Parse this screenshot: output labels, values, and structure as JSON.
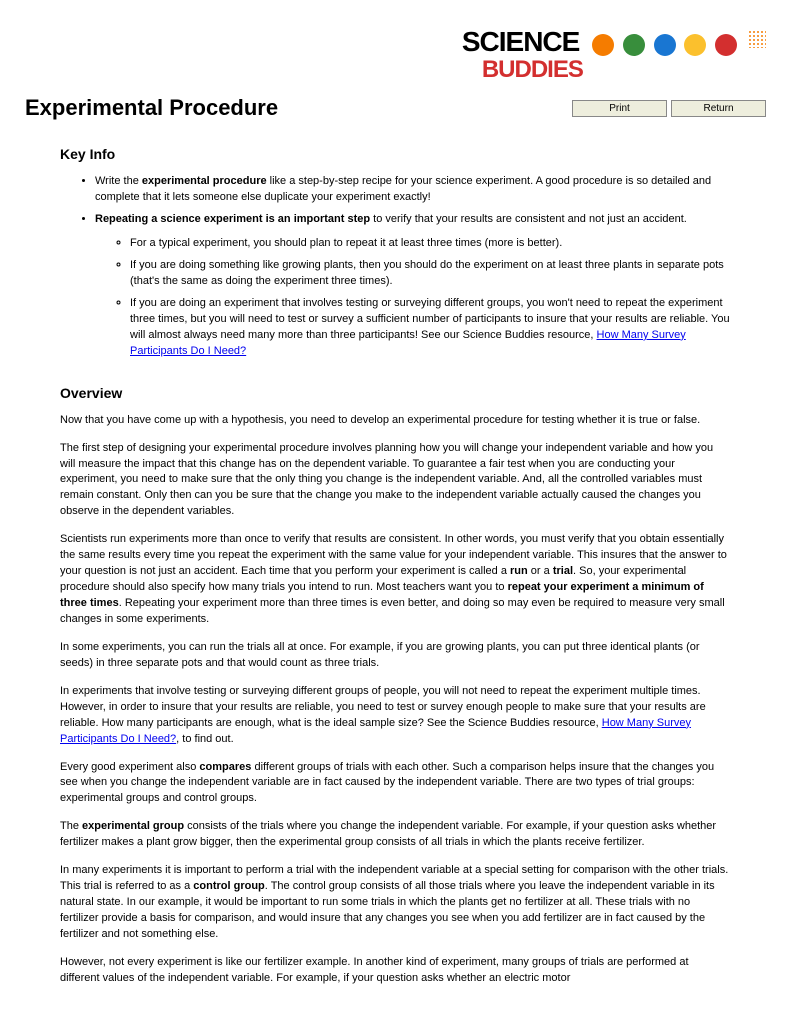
{
  "logo": {
    "line1": "SCIENCE",
    "line2": "BUDDIES"
  },
  "page_title": "Experimental Procedure",
  "buttons": {
    "print": "Print",
    "return": "Return"
  },
  "sections": {
    "key_info": {
      "heading": "Key Info",
      "bullets": {
        "b1_pre": "Write the ",
        "b1_bold": "experimental procedure",
        "b1_post": " like a step-by-step recipe for your science experiment. A good procedure is so detailed and complete that it lets someone else duplicate your experiment exactly!",
        "b2_bold": "Repeating a science experiment is an important step",
        "b2_post": " to verify that your results are consistent and not just an accident.",
        "sub1": "For a typical experiment, you should plan to repeat it at least three times (more is better).",
        "sub2": "If you are doing something like growing plants, then you should do the experiment on at least three plants in separate pots (that's the same as doing the experiment three times).",
        "sub3_pre": "If you are doing an experiment that involves testing or surveying different groups, you won't need to repeat the experiment three times, but you will need to test or survey a sufficient number of participants to insure that your results are reliable. You will almost always need many more than three participants! See our Science Buddies resource, ",
        "sub3_link": "How Many Survey Participants Do I Need?"
      }
    },
    "overview": {
      "heading": "Overview",
      "p1": "Now that you have come up with a hypothesis, you need to develop an experimental procedure for testing whether it is true or false.",
      "p2": "The first step of designing your experimental procedure involves planning how you will change your independent variable and how you will measure the impact that this change has on the dependent variable. To guarantee a fair test when you are conducting your experiment, you need to make sure that the only thing you change is the independent variable. And, all the controlled variables must remain constant. Only then can you be sure that the change you make to the independent variable actually caused the changes you observe in the dependent variables.",
      "p3_pre": "Scientists run experiments more than once to verify that results are consistent. In other words, you must verify that you obtain essentially the same results every time you repeat the experiment with the same value for your independent variable. This insures that the answer to your question is not just an accident. Each time that you perform your experiment is called a ",
      "p3_bold1": "run",
      "p3_mid1": " or a ",
      "p3_bold2": "trial",
      "p3_mid2": ". So, your experimental procedure should also specify how many trials you intend to run. Most teachers want you to ",
      "p3_bold3": "repeat your experiment a minimum of three times",
      "p3_post": ". Repeating your experiment more than three times is even better, and doing so may even be required to measure very small changes in some experiments.",
      "p4": "In some experiments, you can run the trials all at once. For example, if you are growing plants, you can put three identical plants (or seeds) in three separate pots and that would count as three trials.",
      "p5_pre": "In experiments that involve testing or surveying different groups of people, you will not need to repeat the experiment multiple times. However, in order to insure that your results are reliable, you need to test or survey enough people to make sure that your results are reliable. How many participants are enough, what is the ideal sample size? See the Science Buddies resource, ",
      "p5_link": "How Many Survey Participants Do I Need?",
      "p5_post": ", to find out.",
      "p6_pre": "Every good experiment also ",
      "p6_bold": "compares",
      "p6_post": " different groups of trials with each other. Such a comparison helps insure that the changes you see when you change the independent variable are in fact caused by the independent variable. There are two types of trial groups: experimental groups and control groups.",
      "p7_pre": "The ",
      "p7_bold": "experimental group",
      "p7_post": " consists of the trials where you change the independent variable. For example, if your question asks whether fertilizer makes a plant grow bigger, then the experimental group consists of all trials in which the plants receive fertilizer.",
      "p8_pre": "In many experiments it is important to perform a trial with the independent variable at a special setting for comparison with the other trials. This trial is referred to as a ",
      "p8_bold": "control group",
      "p8_post": ". The control group consists of all those trials where you leave the independent variable in its natural state. In our example, it would be important to run some trials in which the plants get no fertilizer at all. These trials with no fertilizer provide a basis for comparison, and would insure that any changes you see when you add fertilizer are in fact caused by the fertilizer and not something else.",
      "p9": "However, not every experiment is like our fertilizer example. In another kind of experiment, many groups of trials are performed at different values of the independent variable. For example, if your question asks whether an electric motor"
    }
  }
}
